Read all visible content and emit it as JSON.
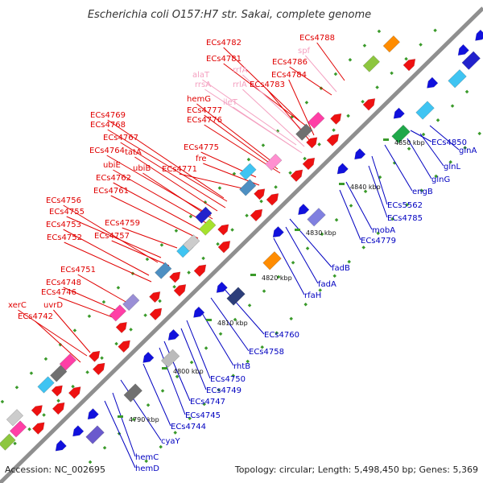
{
  "title": "Escherichia coli O157:H7 str. Sakai, complete genome",
  "footer_left": "Accession: NC_002695",
  "footer_right": "Topology: circular; Length: 5,498,450 bp; Genes: 5,369",
  "colors": {
    "backbone": "#8f8f8f",
    "forward_label": "#e00000",
    "rna_label": "#f4a0c0",
    "reverse_label": "#0000c0",
    "tick_dot": "#3a9a2a",
    "forward_arrow": "#ee1111",
    "reverse_arrow": "#1111dd"
  },
  "ticks": [
    {
      "label": "4790 kbp"
    },
    {
      "label": "4800 kbp"
    },
    {
      "label": "4810 kbp"
    },
    {
      "label": "4820 kbp"
    },
    {
      "label": "4830 kbp"
    },
    {
      "label": "4840 kbp"
    },
    {
      "label": "4850 kbp"
    }
  ],
  "forward_labels": [
    "ECs4788",
    "ECs4782",
    "spf",
    "ECs4781",
    "ECs4786",
    "rrfA",
    "alaT",
    "ECs4784",
    "rrsA",
    "rrlA",
    "ECs4783",
    "ileT",
    "hemG",
    "ECs4777",
    "ECs4776",
    "ECs4769",
    "ECs4768",
    "ECs4767",
    "ECs4775",
    "fre",
    "ECs4764",
    "tatA",
    "ubiE",
    "ubiB",
    "ECs4771",
    "ECs4762",
    "ECs4761",
    "ECs4756",
    "ECs4755",
    "ECs4759",
    "ECs4753",
    "ECs4752",
    "ECs4757",
    "ECs4751",
    "ECs4748",
    "ECs4746",
    "xerC",
    "uvrD",
    "ECs4742"
  ],
  "reverse_labels": [
    "glnA",
    "ECs4850",
    "glnL",
    "glnG",
    "engB",
    "ECs5562",
    "ECs4785",
    "mobA",
    "ECs4779",
    "fadB",
    "fadA",
    "rfaH",
    "ECs4760",
    "ECs4758",
    "rhtB",
    "ECs4750",
    "ECs4749",
    "ECs4747",
    "ECs4745",
    "ECs4744",
    "cyaY",
    "hemC",
    "hemD"
  ]
}
